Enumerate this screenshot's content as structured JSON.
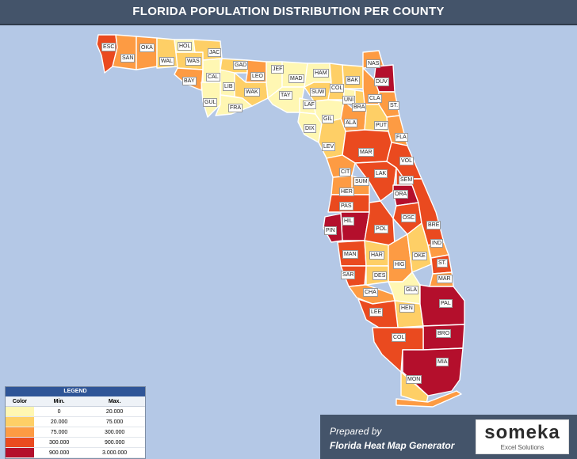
{
  "title": "FLORIDA POPULATION DISTRIBUTION PER COUNTY",
  "colors": {
    "level1": "#fff7b3",
    "level2": "#fecf66",
    "level3": "#fd9b43",
    "level4": "#ea4a1f",
    "level5": "#b40f2c",
    "title_bg": "#44546a",
    "legend_header": "#2f5597",
    "background": "#b4c8e6"
  },
  "legend": {
    "title": "LEGEND",
    "col_color": "Color",
    "col_min": "Min.",
    "col_max": "Max.",
    "rows": [
      {
        "min": "0",
        "max": "20.000",
        "level": 1
      },
      {
        "min": "20.000",
        "max": "75.000",
        "level": 2
      },
      {
        "min": "75.000",
        "max": "300.000",
        "level": 3
      },
      {
        "min": "300.000",
        "max": "900.000",
        "level": 4
      },
      {
        "min": "900.000",
        "max": "3.000.000",
        "level": 5
      }
    ]
  },
  "counties": [
    {
      "code": "ESC",
      "level": 4
    },
    {
      "code": "SAN",
      "level": 3
    },
    {
      "code": "OKA",
      "level": 3
    },
    {
      "code": "WAL",
      "level": 2
    },
    {
      "code": "HOL",
      "level": 1
    },
    {
      "code": "WAS",
      "level": 2
    },
    {
      "code": "JAC",
      "level": 2
    },
    {
      "code": "BAY",
      "level": 3
    },
    {
      "code": "CAL",
      "level": 1
    },
    {
      "code": "LIB",
      "level": 1
    },
    {
      "code": "GUL",
      "level": 1
    },
    {
      "code": "FRA",
      "level": 1
    },
    {
      "code": "GAD",
      "level": 2
    },
    {
      "code": "LEO",
      "level": 3
    },
    {
      "code": "WAK",
      "level": 2
    },
    {
      "code": "JEF",
      "level": 1
    },
    {
      "code": "MAD",
      "level": 1
    },
    {
      "code": "TAY",
      "level": 1
    },
    {
      "code": "HAM",
      "level": 1
    },
    {
      "code": "SUW",
      "level": 2
    },
    {
      "code": "LAF",
      "level": 1
    },
    {
      "code": "DIX",
      "level": 1
    },
    {
      "code": "COL",
      "level": 2
    },
    {
      "code": "BAK",
      "level": 2
    },
    {
      "code": "UNI",
      "level": 1
    },
    {
      "code": "BRA",
      "level": 2
    },
    {
      "code": "GIL",
      "level": 1
    },
    {
      "code": "NAS",
      "level": 3
    },
    {
      "code": "DUV",
      "level": 5
    },
    {
      "code": "CLA",
      "level": 3
    },
    {
      "code": "ST.",
      "level": 3
    },
    {
      "code": "ALA",
      "level": 3
    },
    {
      "code": "PUT",
      "level": 2
    },
    {
      "code": "FLA",
      "level": 3
    },
    {
      "code": "LEV",
      "level": 2
    },
    {
      "code": "MAR",
      "level": 4
    },
    {
      "code": "VOL",
      "level": 4
    },
    {
      "code": "CIT",
      "level": 3
    },
    {
      "code": "LAK",
      "level": 4
    },
    {
      "code": "SEM",
      "level": 4
    },
    {
      "code": "SUM",
      "level": 3
    },
    {
      "code": "HER",
      "level": 3
    },
    {
      "code": "ORA",
      "level": 5
    },
    {
      "code": "PAS",
      "level": 4
    },
    {
      "code": "HIL",
      "level": 5
    },
    {
      "code": "PIN",
      "level": 5
    },
    {
      "code": "OSC",
      "level": 4
    },
    {
      "code": "BRE",
      "level": 4
    },
    {
      "code": "POL",
      "level": 4
    },
    {
      "code": "IND",
      "level": 3
    },
    {
      "code": "MAN",
      "level": 4
    },
    {
      "code": "HAR",
      "level": 2
    },
    {
      "code": "HIG",
      "level": 3
    },
    {
      "code": "OKE",
      "level": 2
    },
    {
      "code": "ST.",
      "level": 4
    },
    {
      "code": "SAR",
      "level": 4
    },
    {
      "code": "DES",
      "level": 2
    },
    {
      "code": "MAR",
      "level": 3
    },
    {
      "code": "GLA",
      "level": 1
    },
    {
      "code": "CHA",
      "level": 3
    },
    {
      "code": "HEN",
      "level": 2
    },
    {
      "code": "PAL",
      "level": 5
    },
    {
      "code": "LEE",
      "level": 4
    },
    {
      "code": "BRO",
      "level": 5
    },
    {
      "code": "COL",
      "level": 4
    },
    {
      "code": "MIA",
      "level": 5
    },
    {
      "code": "MON",
      "level": 2
    }
  ],
  "footer": {
    "prepared_by": "Prepared by",
    "generator": "Florida Heat Map Generator",
    "logo_name": "someka",
    "logo_sub": "Excel Solutions"
  }
}
